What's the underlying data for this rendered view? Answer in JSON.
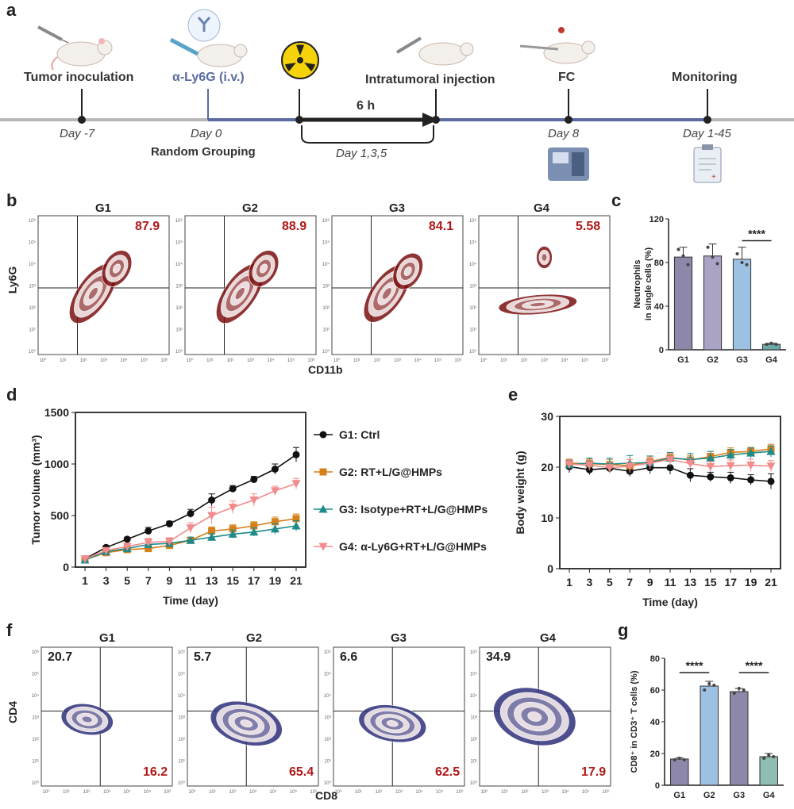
{
  "panel_letters": {
    "a": "a",
    "b": "b",
    "c": "c",
    "d": "d",
    "e": "e",
    "f": "f",
    "g": "g"
  },
  "timeline": {
    "events": [
      {
        "title": "Tumor inoculation",
        "day": "Day -7"
      },
      {
        "title": "α-Ly6G (i.v.)",
        "day": "Day 0",
        "sub": "Random Grouping"
      },
      {
        "title": "",
        "day": ""
      },
      {
        "title": "Intratumoral injection",
        "day": ""
      },
      {
        "title": "FC",
        "day": "Day 8"
      },
      {
        "title": "Monitoring",
        "day": "Day 1-45"
      }
    ],
    "arrow_label": "6 h",
    "bracket_label": "Day 1,3,5",
    "colors": {
      "axis": "#b0b0b0",
      "active": "#5b6aa0",
      "arrow": "#222222",
      "accent": "#5b6aa0"
    },
    "icons": [
      "mouse-syringe-icon",
      "antibody-mouse-icon",
      "radiation-icon",
      "mouse-injection-icon",
      "mouse-sample-icon",
      "flow-cytometer-icon",
      "clipboard-icon"
    ]
  },
  "chart_data": [
    {
      "id": "b",
      "type": "contour",
      "groups": [
        "G1",
        "G2",
        "G3",
        "G4"
      ],
      "percentages": [
        "87.9",
        "88.9",
        "84.1",
        "5.58"
      ],
      "xlabel": "CD11b",
      "ylabel": "Ly6G",
      "tick_labels": [
        "10⁰",
        "10¹",
        "10²",
        "10³",
        "10⁴",
        "10⁵",
        "10⁶"
      ],
      "color": "#7a1010"
    },
    {
      "id": "c",
      "type": "bar",
      "categories": [
        "G1",
        "G2",
        "G3",
        "G4"
      ],
      "values": [
        85,
        86,
        83,
        5
      ],
      "errors": [
        9,
        11,
        11,
        1
      ],
      "points": [
        [
          92,
          86,
          78
        ],
        [
          94,
          85,
          79
        ],
        [
          88,
          80,
          78
        ],
        [
          5,
          6,
          5
        ]
      ],
      "ylabel": "Neutrophils in single cells (%)",
      "ylabel_lines": [
        "Neutrophils",
        "in single cells (%)"
      ],
      "ylim": [
        0,
        120
      ],
      "yticks": [
        0,
        40,
        80,
        120
      ],
      "significance": "****",
      "colors": [
        "#8d88aa",
        "#aaa3c6",
        "#9dc1e2",
        "#6fa8a8"
      ]
    },
    {
      "id": "d",
      "type": "line",
      "x": [
        1,
        3,
        5,
        7,
        9,
        11,
        13,
        15,
        17,
        19,
        21
      ],
      "xlabel": "Time (day)",
      "ylabel": "Tumor volume (mm³)",
      "ylim": [
        0,
        1500
      ],
      "yticks": [
        0,
        500,
        1000,
        1500
      ],
      "series": [
        {
          "name": "G1: Ctrl",
          "color": "#111111",
          "marker": "circle",
          "values": [
            80,
            190,
            270,
            350,
            420,
            520,
            650,
            760,
            850,
            950,
            1090
          ],
          "errors": [
            20,
            20,
            20,
            35,
            25,
            40,
            60,
            30,
            30,
            50,
            70
          ]
        },
        {
          "name": "G2: RT+L/G@HMPs",
          "color": "#d5801a",
          "marker": "square",
          "values": [
            70,
            140,
            170,
            180,
            210,
            260,
            350,
            370,
            400,
            440,
            470
          ],
          "errors": [
            15,
            20,
            25,
            35,
            30,
            30,
            40,
            40,
            40,
            45,
            45
          ]
        },
        {
          "name": "G3: Isotype+RT+L/G@HMPs",
          "color": "#1f8a8a",
          "marker": "triangle",
          "values": [
            70,
            150,
            180,
            220,
            230,
            260,
            290,
            320,
            340,
            370,
            400
          ],
          "errors": [
            15,
            20,
            30,
            40,
            30,
            30,
            35,
            40,
            40,
            50,
            50
          ]
        },
        {
          "name": "G4: α-Ly6G+RT+L/G@HMPs",
          "color": "#f28b8b",
          "marker": "invtriangle",
          "values": [
            80,
            160,
            200,
            240,
            250,
            380,
            500,
            580,
            650,
            740,
            810
          ],
          "errors": [
            20,
            25,
            30,
            40,
            35,
            50,
            80,
            60,
            60,
            45,
            50
          ]
        }
      ]
    },
    {
      "id": "e",
      "type": "line",
      "x": [
        1,
        3,
        5,
        7,
        9,
        11,
        13,
        15,
        17,
        19,
        21
      ],
      "xlabel": "Time (day)",
      "ylabel": "Body weight (g)",
      "ylim": [
        0,
        30
      ],
      "yticks": [
        0,
        10,
        20,
        30
      ],
      "series": [
        {
          "name": "G1",
          "color": "#111111",
          "marker": "circle",
          "values": [
            20.1,
            19.5,
            19.8,
            19.2,
            19.9,
            19.9,
            18.4,
            18.1,
            17.9,
            17.5,
            17.2
          ],
          "errors": [
            1.2,
            1.0,
            0.9,
            1.0,
            1.2,
            1.3,
            1.3,
            0.9,
            1.1,
            1.0,
            1.5
          ]
        },
        {
          "name": "G2",
          "color": "#d5801a",
          "marker": "square",
          "values": [
            20.8,
            20.7,
            20.5,
            20.3,
            21.1,
            21.9,
            21.4,
            22.1,
            22.9,
            23.1,
            23.6
          ],
          "errors": [
            0.8,
            0.9,
            1.0,
            1.2,
            1.1,
            1.0,
            0.9,
            1.0,
            0.9,
            0.8,
            0.9
          ]
        },
        {
          "name": "G3",
          "color": "#1f8a8a",
          "marker": "triangle",
          "values": [
            20.5,
            20.8,
            20.6,
            20.8,
            20.9,
            21.8,
            21.5,
            21.8,
            22.4,
            22.8,
            23.1
          ],
          "errors": [
            0.9,
            1.0,
            1.2,
            1.5,
            1.3,
            1.1,
            1.2,
            1.3,
            1.1,
            1.0,
            1.1
          ]
        },
        {
          "name": "G4",
          "color": "#f28b8b",
          "marker": "invtriangle",
          "values": [
            20.6,
            20.4,
            19.9,
            20.2,
            20.8,
            21.5,
            20.7,
            20.1,
            20.3,
            20.4,
            20.2
          ],
          "errors": [
            0.9,
            1.0,
            1.1,
            1.3,
            1.2,
            1.2,
            1.0,
            1.0,
            1.1,
            1.2,
            1.1
          ]
        }
      ]
    },
    {
      "id": "f",
      "type": "contour",
      "groups": [
        "G1",
        "G2",
        "G3",
        "G4"
      ],
      "top_left": [
        "20.7",
        "5.7",
        "6.6",
        "34.9"
      ],
      "bottom_right": [
        "16.2",
        "65.4",
        "62.5",
        "17.9"
      ],
      "xlabel": "CD8",
      "ylabel": "CD4",
      "tick_labels": [
        "10⁰",
        "10¹",
        "10²",
        "10³",
        "10⁴",
        "10⁵",
        "10⁶"
      ],
      "color": "#2e2f7a"
    },
    {
      "id": "g",
      "type": "bar",
      "categories": [
        "G1",
        "G2",
        "G3",
        "G4"
      ],
      "values": [
        16.5,
        62.5,
        59,
        18
      ],
      "errors": [
        0.8,
        3,
        2,
        2
      ],
      "points": [
        [
          16,
          17,
          16
        ],
        [
          60,
          64,
          63
        ],
        [
          58,
          61,
          60
        ],
        [
          17,
          19,
          18
        ]
      ],
      "ylabel": "CD8⁺ in CD3⁺ T cells (%)",
      "ylim": [
        0,
        80
      ],
      "yticks": [
        0,
        20,
        40,
        60,
        80
      ],
      "significance": [
        "****",
        "****"
      ],
      "colors": [
        "#8d88aa",
        "#9dc1e2",
        "#8d88aa",
        "#8fbdb4"
      ]
    }
  ]
}
